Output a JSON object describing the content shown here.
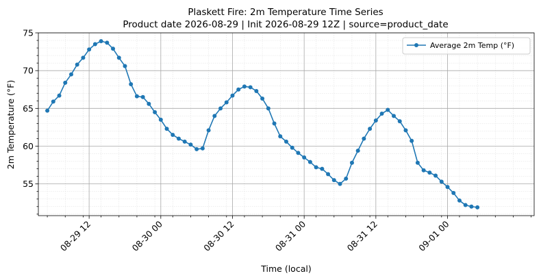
{
  "chart_data": {
    "type": "line",
    "title": "Plaskett Fire: 2m Temperature Time Series",
    "subtitle": "Product date 2026-08-29 | Init 2026-08-29 12Z | source=product_date",
    "xlabel": "Time (local)",
    "ylabel": "2m Temperature (°F)",
    "x_start_label": "2026-08-29 05:00",
    "x_step_hours": 1,
    "xlim_hours": [
      -1.5,
      81.5
    ],
    "x_ticks": [
      {
        "label": "08-29 12",
        "hour": 7
      },
      {
        "label": "08-30 00",
        "hour": 19
      },
      {
        "label": "08-30 12",
        "hour": 31
      },
      {
        "label": "08-31 00",
        "hour": 43
      },
      {
        "label": "08-31 12",
        "hour": 55
      },
      {
        "label": "09-01 00",
        "hour": 67
      }
    ],
    "ylim": [
      50.8,
      75
    ],
    "y_ticks": [
      55,
      60,
      65,
      70,
      75
    ],
    "grid": true,
    "legend_position": "top-right",
    "series": [
      {
        "name": "Average 2m Temp (°F)",
        "color": "#1f77b4",
        "values": [
          64.7,
          65.9,
          66.7,
          68.4,
          69.5,
          70.8,
          71.7,
          72.8,
          73.5,
          73.9,
          73.7,
          72.9,
          71.7,
          70.6,
          68.2,
          66.6,
          66.5,
          65.6,
          64.5,
          63.5,
          62.3,
          61.5,
          61.0,
          60.6,
          60.2,
          59.6,
          59.7,
          62.1,
          64.0,
          65.0,
          65.8,
          66.7,
          67.5,
          67.9,
          67.8,
          67.3,
          66.3,
          65.0,
          63.0,
          61.3,
          60.6,
          59.8,
          59.1,
          58.5,
          57.9,
          57.2,
          57.0,
          56.3,
          55.5,
          55.0,
          55.7,
          57.8,
          59.4,
          61.0,
          62.3,
          63.4,
          64.3,
          64.8,
          64.0,
          63.3,
          62.1,
          60.7,
          57.8,
          56.8,
          56.5,
          56.1,
          55.3,
          54.6,
          53.8,
          52.8,
          52.2,
          52.0,
          51.9
        ]
      }
    ]
  }
}
